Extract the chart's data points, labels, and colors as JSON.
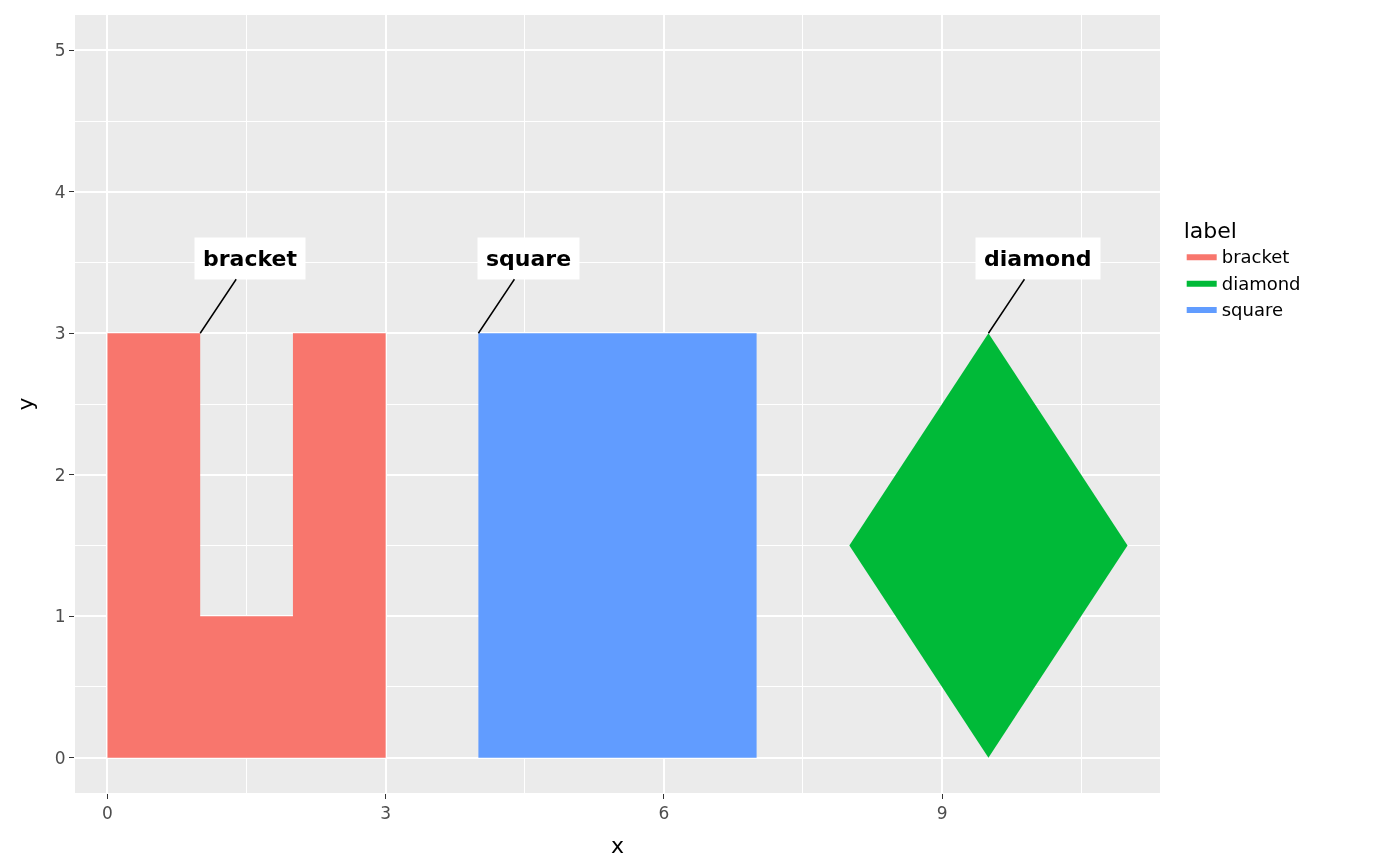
{
  "chart_data": {
    "type": "area",
    "xlabel": "x",
    "ylabel": "y",
    "legend_title": "label",
    "series": [
      {
        "name": "bracket",
        "color": "#f8766d",
        "x": [
          0,
          3,
          3,
          2,
          2,
          1,
          1,
          0
        ],
        "values": [
          0,
          0,
          3,
          3,
          1,
          1,
          3,
          3
        ]
      },
      {
        "name": "diamond",
        "color": "#00ba38",
        "x": [
          8,
          9.5,
          11,
          9.5
        ],
        "values": [
          1.5,
          0,
          1.5,
          3
        ]
      },
      {
        "name": "square",
        "color": "#619cff",
        "x": [
          4,
          7,
          7,
          4
        ],
        "values": [
          0,
          0,
          3,
          3
        ]
      }
    ],
    "annotations": [
      {
        "text": "bracket",
        "x": 1,
        "y": 3
      },
      {
        "text": "square",
        "x": 4,
        "y": 3
      },
      {
        "text": "diamond",
        "x": 9.5,
        "y": 3
      }
    ],
    "xlim": [
      -0.35,
      11.35
    ],
    "xticks": [
      0,
      3,
      6,
      9
    ],
    "ylim": [
      -0.25,
      5.25
    ],
    "yticks": [
      0,
      1,
      2,
      3,
      4,
      5
    ],
    "grid": true,
    "legend": "right"
  }
}
